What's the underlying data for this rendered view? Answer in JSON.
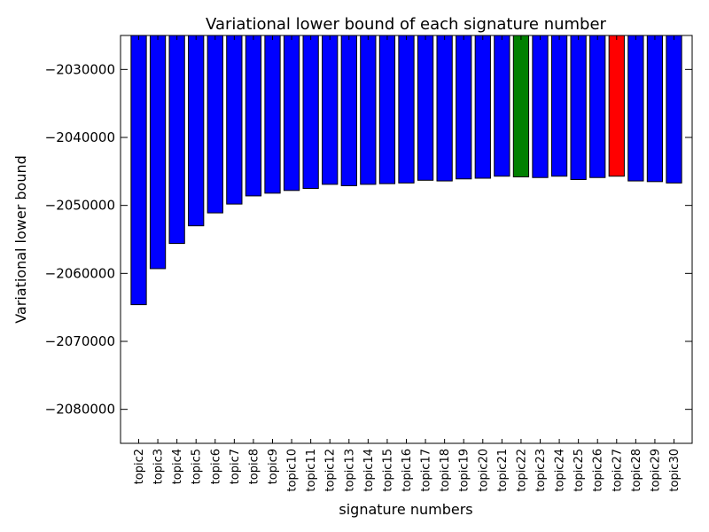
{
  "chart_data": {
    "type": "bar",
    "title": "Variational lower bound of each signature number",
    "xlabel": "signature numbers",
    "ylabel": "Variational lower bound",
    "ylim": [
      -2085000,
      -2025000
    ],
    "yticks": [
      -2030000,
      -2040000,
      -2050000,
      -2060000,
      -2070000,
      -2080000
    ],
    "ytick_labels": [
      "−2030000",
      "−2040000",
      "−2050000",
      "−2060000",
      "−2070000",
      "−2080000"
    ],
    "categories": [
      "topic2",
      "topic3",
      "topic4",
      "topic5",
      "topic6",
      "topic7",
      "topic8",
      "topic9",
      "topic10",
      "topic11",
      "topic12",
      "topic13",
      "topic14",
      "topic15",
      "topic16",
      "topic17",
      "topic18",
      "topic19",
      "topic20",
      "topic21",
      "topic22",
      "topic23",
      "topic24",
      "topic25",
      "topic26",
      "topic27",
      "topic28",
      "topic29",
      "topic30"
    ],
    "values": [
      -2064600,
      -2059300,
      -2055600,
      -2053000,
      -2051100,
      -2049800,
      -2048600,
      -2048200,
      -2047800,
      -2047500,
      -2046900,
      -2047100,
      -2046900,
      -2046800,
      -2046700,
      -2046300,
      -2046400,
      -2046100,
      -2046000,
      -2045700,
      -2045800,
      -2045900,
      -2045700,
      -2046200,
      -2045900,
      -2045700,
      -2046400,
      -2046500,
      -2046700
    ],
    "colors": [
      "#0000ff",
      "#0000ff",
      "#0000ff",
      "#0000ff",
      "#0000ff",
      "#0000ff",
      "#0000ff",
      "#0000ff",
      "#0000ff",
      "#0000ff",
      "#0000ff",
      "#0000ff",
      "#0000ff",
      "#0000ff",
      "#0000ff",
      "#0000ff",
      "#0000ff",
      "#0000ff",
      "#0000ff",
      "#0000ff",
      "#008000",
      "#0000ff",
      "#0000ff",
      "#0000ff",
      "#0000ff",
      "#ff0000",
      "#0000ff",
      "#0000ff",
      "#0000ff"
    ],
    "grid": false
  }
}
